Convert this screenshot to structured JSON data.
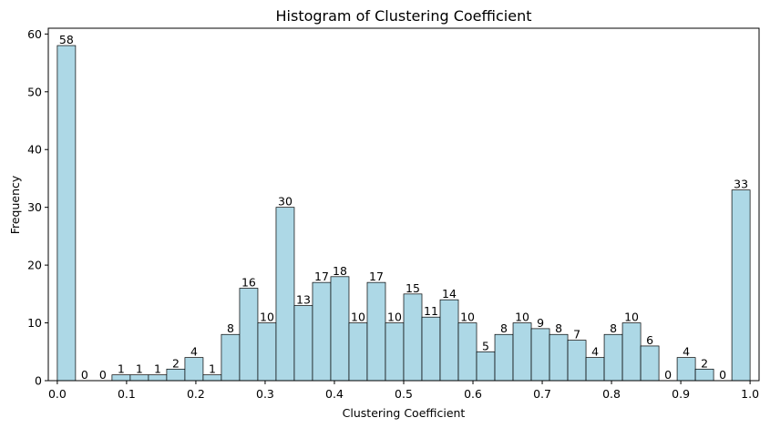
{
  "chart_data": {
    "type": "bar",
    "title": "Histogram of Clustering Coefficient",
    "xlabel": "Clustering Coefficient",
    "ylabel": "Frequency",
    "bin_edges_start": 0.0,
    "bin_width": 0.02631578947,
    "values": [
      58,
      0,
      0,
      1,
      1,
      1,
      2,
      4,
      1,
      8,
      16,
      10,
      30,
      13,
      17,
      18,
      10,
      17,
      10,
      15,
      11,
      14,
      10,
      5,
      8,
      10,
      9,
      8,
      7,
      4,
      8,
      10,
      6,
      0,
      4,
      2,
      0,
      33
    ],
    "xlim": [
      -0.013,
      1.013
    ],
    "ylim": [
      0,
      61
    ],
    "xticks": [
      0.0,
      0.1,
      0.2,
      0.3,
      0.4,
      0.5,
      0.6,
      0.7,
      0.8,
      0.9,
      1.0
    ],
    "xtick_labels": [
      "0.0",
      "0.1",
      "0.2",
      "0.3",
      "0.4",
      "0.5",
      "0.6",
      "0.7",
      "0.8",
      "0.9",
      "1.0"
    ],
    "yticks": [
      0,
      10,
      20,
      30,
      40,
      50,
      60
    ],
    "ytick_labels": [
      "0",
      "10",
      "20",
      "30",
      "40",
      "50",
      "60"
    ],
    "bar_color": "#add8e6",
    "edge_color": "#000000",
    "grid": false
  }
}
